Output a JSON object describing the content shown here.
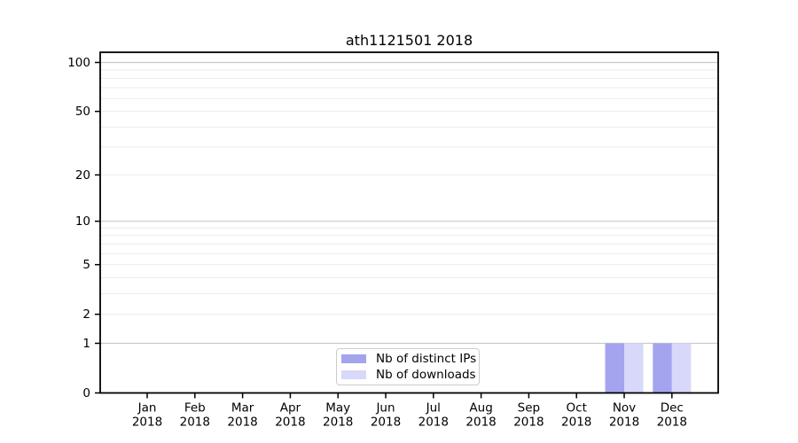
{
  "figure": {
    "title": "ath1121501 2018"
  },
  "chart_data": {
    "type": "bar",
    "title": "ath1121501 2018",
    "categories": [
      "Jan",
      "Feb",
      "Mar",
      "Apr",
      "May",
      "Jun",
      "Jul",
      "Aug",
      "Sep",
      "Oct",
      "Nov",
      "Dec"
    ],
    "category_year": "2018",
    "series": [
      {
        "name": "Nb of distinct IPs",
        "color": "#a4a4ee",
        "values": [
          0,
          0,
          0,
          0,
          0,
          0,
          0,
          0,
          0,
          0,
          1,
          1
        ]
      },
      {
        "name": "Nb of downloads",
        "color": "#d8d8fa",
        "values": [
          0,
          0,
          0,
          0,
          0,
          0,
          0,
          0,
          0,
          0,
          1,
          1
        ]
      }
    ],
    "xlabel": "",
    "ylabel": "",
    "y_axis": {
      "scale": "log1p",
      "tick_values": [
        0,
        1,
        2,
        5,
        10,
        20,
        50,
        100
      ],
      "major_grid_values": [
        1,
        10,
        100
      ],
      "minor_grid_values": [
        2,
        3,
        4,
        5,
        6,
        7,
        8,
        9,
        20,
        30,
        40,
        50,
        60,
        70,
        80,
        90
      ],
      "ylim": [
        0,
        100
      ]
    },
    "legend": {
      "position": "bottom-center-inside",
      "entries": [
        "Nb of distinct IPs",
        "Nb of downloads"
      ]
    },
    "colors": {
      "major_grid": "#c9c9c9",
      "minor_grid": "#ebebeb",
      "spine": "#000000",
      "tick_label": "#000000"
    }
  }
}
